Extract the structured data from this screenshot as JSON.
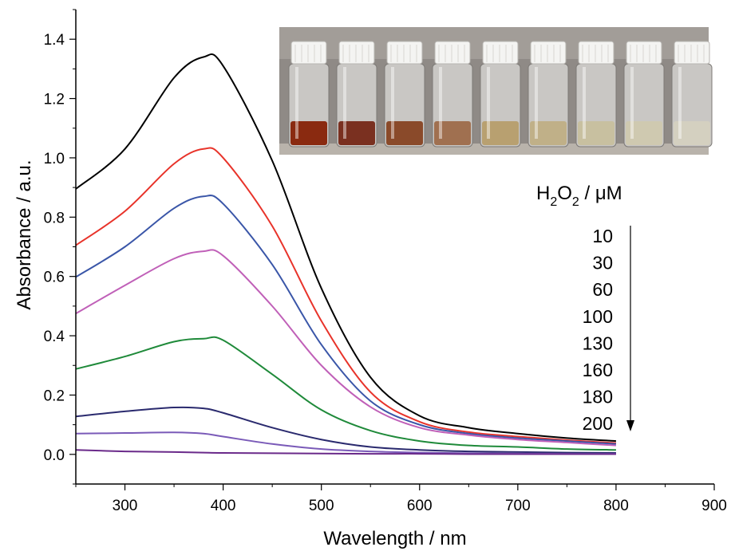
{
  "chart_data": {
    "type": "line",
    "xlabel": "Wavelength / nm",
    "ylabel": "Absorbance / a.u.",
    "xlim": [
      250,
      900
    ],
    "ylim": [
      -0.1,
      1.5
    ],
    "xticks": [
      300,
      400,
      500,
      600,
      700,
      800,
      900
    ],
    "yticks": [
      0.0,
      0.2,
      0.4,
      0.6,
      0.8,
      1.0,
      1.2,
      1.4
    ],
    "ytick_labels": [
      "0.0",
      "0.2",
      "0.4",
      "0.6",
      "0.8",
      "1.0",
      "1.2",
      "1.4"
    ],
    "x": [
      250,
      300,
      350,
      380,
      400,
      450,
      500,
      550,
      600,
      650,
      700,
      750,
      800
    ],
    "series": [
      {
        "color": "#000000",
        "values": [
          0.895,
          1.03,
          1.27,
          1.34,
          1.31,
          0.99,
          0.56,
          0.26,
          0.13,
          0.09,
          0.07,
          0.055,
          0.045
        ]
      },
      {
        "color": "#e8332a",
        "values": [
          0.705,
          0.82,
          0.98,
          1.03,
          1.0,
          0.77,
          0.45,
          0.21,
          0.11,
          0.075,
          0.06,
          0.048,
          0.038
        ]
      },
      {
        "color": "#3a56a8",
        "values": [
          0.598,
          0.7,
          0.83,
          0.87,
          0.845,
          0.64,
          0.37,
          0.18,
          0.1,
          0.07,
          0.055,
          0.045,
          0.035
        ]
      },
      {
        "color": "#c060b8",
        "values": [
          0.475,
          0.57,
          0.66,
          0.685,
          0.67,
          0.5,
          0.3,
          0.16,
          0.09,
          0.065,
          0.05,
          0.04,
          0.03
        ]
      },
      {
        "color": "#1f8a3a",
        "values": [
          0.288,
          0.33,
          0.38,
          0.39,
          0.385,
          0.27,
          0.15,
          0.08,
          0.045,
          0.03,
          0.025,
          0.018,
          0.015
        ]
      },
      {
        "color": "#2a2a6e",
        "values": [
          0.128,
          0.145,
          0.158,
          0.155,
          0.14,
          0.09,
          0.05,
          0.025,
          0.015,
          0.01,
          0.008,
          0.006,
          0.005
        ]
      },
      {
        "color": "#7a5ab8",
        "values": [
          0.07,
          0.072,
          0.074,
          0.07,
          0.06,
          0.035,
          0.018,
          0.01,
          0.006,
          0.004,
          0.003,
          0.002,
          0.002
        ]
      },
      {
        "color": "#6a2a8a",
        "values": [
          0.015,
          0.01,
          0.008,
          0.006,
          0.005,
          0.004,
          0.003,
          0.002,
          0.002,
          0.001,
          0.001,
          0.001,
          0.001
        ]
      }
    ],
    "legend": {
      "title_main": "H",
      "title_sub1": "2",
      "title_mid": "O",
      "title_sub2": "2",
      "title_unit": " / μM",
      "concentrations": [
        "10",
        "30",
        "60",
        "100",
        "130",
        "160",
        "180",
        "200"
      ]
    },
    "inset": {
      "vials": [
        {
          "liquid": "#8a2a10"
        },
        {
          "liquid": "#7a3020"
        },
        {
          "liquid": "#8a4a2a"
        },
        {
          "liquid": "#a07050"
        },
        {
          "liquid": "#b8a070"
        },
        {
          "liquid": "#c0b088"
        },
        {
          "liquid": "#c8c0a0"
        },
        {
          "liquid": "#cfc9b0"
        },
        {
          "liquid": "#d4d0c0"
        }
      ]
    }
  }
}
